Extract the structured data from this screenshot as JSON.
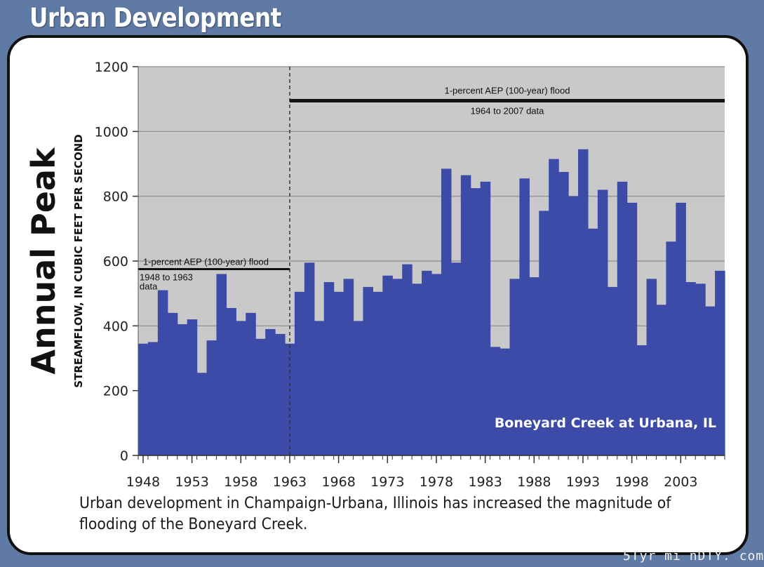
{
  "header": {
    "title": "Urban Development"
  },
  "caption": "Urban development in Champaign-Urbana, Illinois has increased the magnitude of flooding of the Boneyard Creek.",
  "watermark": "5Tyr mi nDTY. com",
  "colors": {
    "background": "#5f7aa4",
    "plot_bg": "#c9c9c9",
    "bar": "#3d4ba8",
    "bar_label": "#ffffff"
  },
  "chart_data": {
    "type": "bar",
    "ylabel_main": "Annual Peak",
    "ylabel_sub": "STREAMFLOW, IN CUBIC FEET PER SECOND",
    "ylim": [
      0,
      1200
    ],
    "yticks": [
      0,
      200,
      400,
      600,
      800,
      1000,
      1200
    ],
    "x_tick_labels": [
      "1948",
      "1953",
      "1958",
      "1963",
      "1968",
      "1973",
      "1978",
      "1983",
      "1988",
      "1993",
      "1998",
      "2003"
    ],
    "grid": true,
    "inset_label": "Boneyard Creek at Urbana, IL",
    "years": [
      1948,
      1949,
      1950,
      1951,
      1952,
      1953,
      1954,
      1955,
      1956,
      1957,
      1958,
      1959,
      1960,
      1961,
      1962,
      1963,
      1964,
      1965,
      1966,
      1967,
      1968,
      1969,
      1970,
      1971,
      1972,
      1973,
      1974,
      1975,
      1976,
      1977,
      1978,
      1979,
      1980,
      1981,
      1982,
      1983,
      1984,
      1985,
      1986,
      1987,
      1988,
      1989,
      1990,
      1991,
      1992,
      1993,
      1994,
      1995,
      1996,
      1997,
      1998,
      1999,
      2000,
      2001,
      2002,
      2003,
      2004,
      2005,
      2006,
      2007
    ],
    "values": [
      345,
      350,
      510,
      440,
      405,
      420,
      255,
      355,
      560,
      455,
      415,
      440,
      360,
      390,
      375,
      345,
      505,
      595,
      415,
      535,
      505,
      545,
      415,
      520,
      505,
      555,
      545,
      590,
      530,
      570,
      560,
      885,
      595,
      865,
      825,
      845,
      335,
      330,
      545,
      855,
      550,
      755,
      915,
      875,
      800,
      945,
      700,
      820,
      520,
      845,
      780,
      340,
      545,
      465,
      660,
      780,
      535,
      530,
      460,
      570
    ],
    "annotations": [
      {
        "label": "1-percent AEP (100-year) flood",
        "sublabel": "1948 to 1963",
        "sublabel2": "data",
        "value": 575,
        "from_year": 1948,
        "to_year": 1963
      },
      {
        "label": "1-percent AEP (100-year) flood",
        "sublabel": "1964 to 2007 data",
        "value": 1095,
        "from_year": 1964,
        "to_year": 2007
      }
    ],
    "divider_year": 1963.5
  }
}
